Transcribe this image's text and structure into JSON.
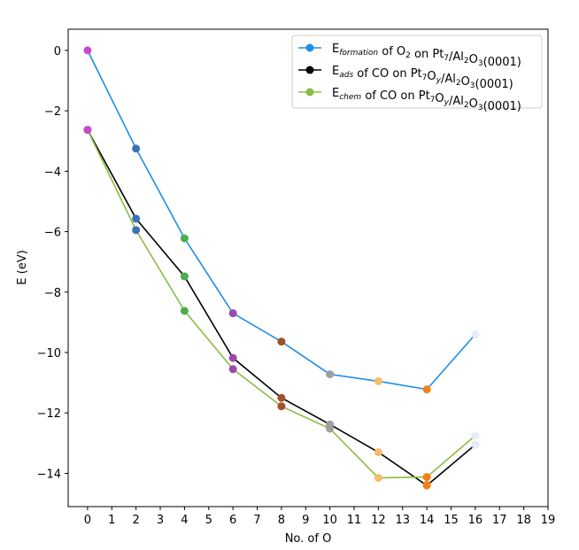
{
  "chart_data": {
    "type": "line",
    "title": "",
    "xlabel": "No. of O",
    "ylabel": "E (eV)",
    "xlim": [
      -0.8,
      19
    ],
    "ylim": [
      -15.1,
      0.7
    ],
    "xticks": [
      0,
      1,
      2,
      3,
      4,
      5,
      6,
      7,
      8,
      9,
      10,
      11,
      12,
      13,
      14,
      15,
      16,
      17,
      18,
      19
    ],
    "yticks": [
      0,
      -2,
      -4,
      -6,
      -8,
      -10,
      -12,
      -14
    ],
    "legend_position": "top-right",
    "series": [
      {
        "name": "E_formation of O2 on Pt7/Al2O3(0001)",
        "legend": {
          "base": "E",
          "sub": "formation",
          "mid": " of O",
          "sub2": "2",
          "tail": " on Pt",
          "sub3": "7",
          "tail2": "/Al",
          "sub4": "2",
          "tail3": "O",
          "sub5": "3",
          "tail4": "(0001)"
        },
        "color": "#1e8fe8",
        "x": [
          0,
          2,
          4,
          6,
          8,
          10,
          12,
          14,
          16
        ],
        "y": [
          0,
          -3.25,
          -6.22,
          -8.7,
          -9.64,
          -10.72,
          -10.95,
          -11.22,
          -9.4
        ]
      },
      {
        "name": "E_ads of CO on Pt7Oy/Al2O3(0001)",
        "legend": {
          "base": "E",
          "sub": "ads",
          "mid": " of CO on Pt",
          "sub2": "7",
          "tail": "O",
          "sub3": "y",
          "tail2": "/Al",
          "sub4": "2",
          "tail3": "O",
          "sub5": "3",
          "tail4": "(0001)"
        },
        "color": "#000000",
        "x": [
          0,
          2,
          4,
          6,
          8,
          10,
          12,
          14,
          16
        ],
        "y": [
          -2.63,
          -5.57,
          -7.48,
          -10.18,
          -11.5,
          -12.38,
          -13.3,
          -14.4,
          -13.05
        ]
      },
      {
        "name": "E_chem of CO on Pt7Oy/Al2O3(0001)",
        "legend": {
          "base": "E",
          "sub": "chem",
          "mid": " of CO on Pt",
          "sub2": "7",
          "tail": "O",
          "sub3": "y",
          "tail2": "/Al",
          "sub4": "2",
          "tail3": "O",
          "sub5": "3",
          "tail4": "(0001)"
        },
        "color": "#8dbb43",
        "x": [
          0,
          2,
          4,
          6,
          8,
          10,
          12,
          14,
          16
        ],
        "y": [
          -2.63,
          -5.95,
          -8.62,
          -10.55,
          -11.78,
          -12.52,
          -14.15,
          -14.12,
          -12.75
        ]
      }
    ],
    "point_colors": [
      "#c34bc9",
      "#3b72b5",
      "#4aae4a",
      "#9b4aa9",
      "#a0522d",
      "#9e9e9e",
      "#f5bc6a",
      "#f57f17",
      "#e6ecf8"
    ],
    "extra_points": [
      {
        "x": 14,
        "y": -14.38
      },
      {
        "x": 16,
        "y": -13.05
      }
    ]
  }
}
